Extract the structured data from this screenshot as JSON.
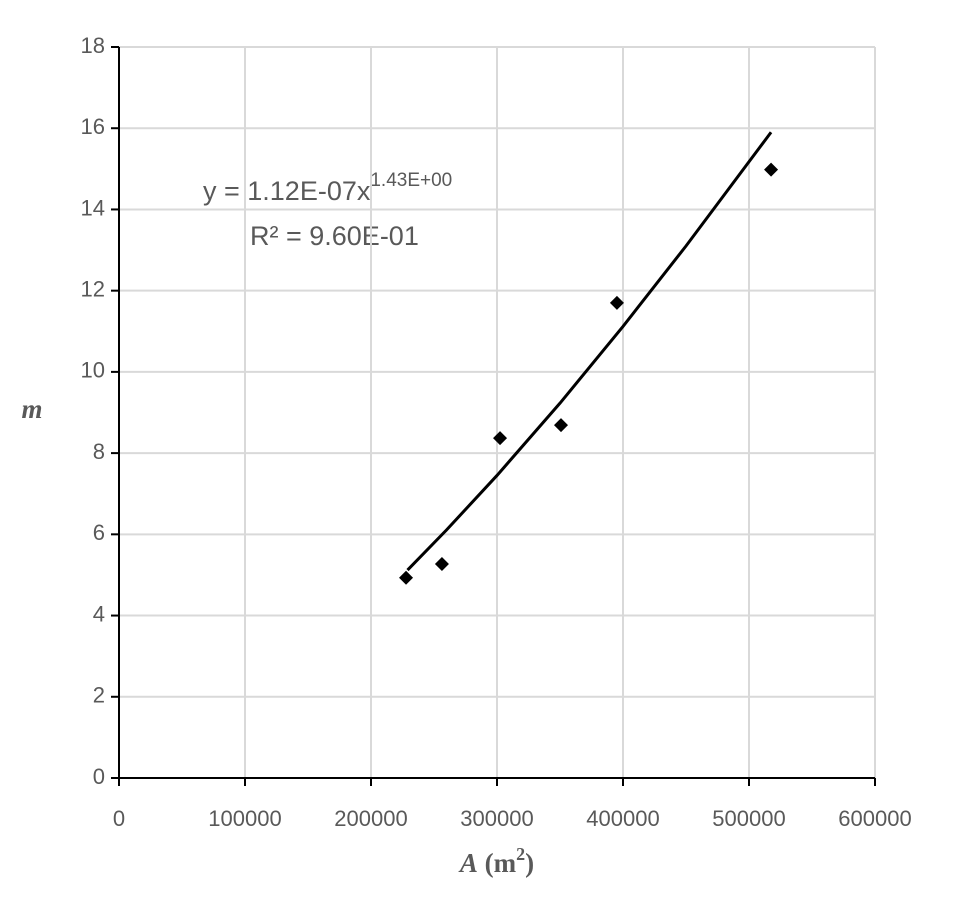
{
  "chart_data": {
    "type": "scatter",
    "ylabel": "m",
    "xlabel": {
      "symbol": "A",
      "unit": "(m",
      "unit_power": "2",
      "unit_close": ")"
    },
    "annotations": {
      "equation": "y = 1.12E-07x",
      "exponent": "1.43E+00",
      "r_squared": "R² = 9.60E-01"
    },
    "x": [
      227800,
      256300,
      302400,
      350800,
      395200,
      517500
    ],
    "values": [
      4.93,
      5.27,
      8.37,
      8.69,
      11.7,
      14.98
    ],
    "color": "#000000",
    "trendline": {
      "x": [
        229000,
        260000,
        300000,
        350000,
        400000,
        450000,
        517500
      ],
      "values": [
        5.12,
        6.11,
        7.45,
        9.23,
        11.12,
        13.1,
        15.9
      ],
      "color": "#000000"
    },
    "xlim": [
      0,
      600000
    ],
    "xticks": [
      0,
      100000,
      200000,
      300000,
      400000,
      500000,
      600000
    ],
    "ylim": [
      0,
      18
    ],
    "yticks": [
      0,
      2,
      4,
      6,
      8,
      10,
      12,
      14,
      16,
      18
    ],
    "grid": true
  }
}
